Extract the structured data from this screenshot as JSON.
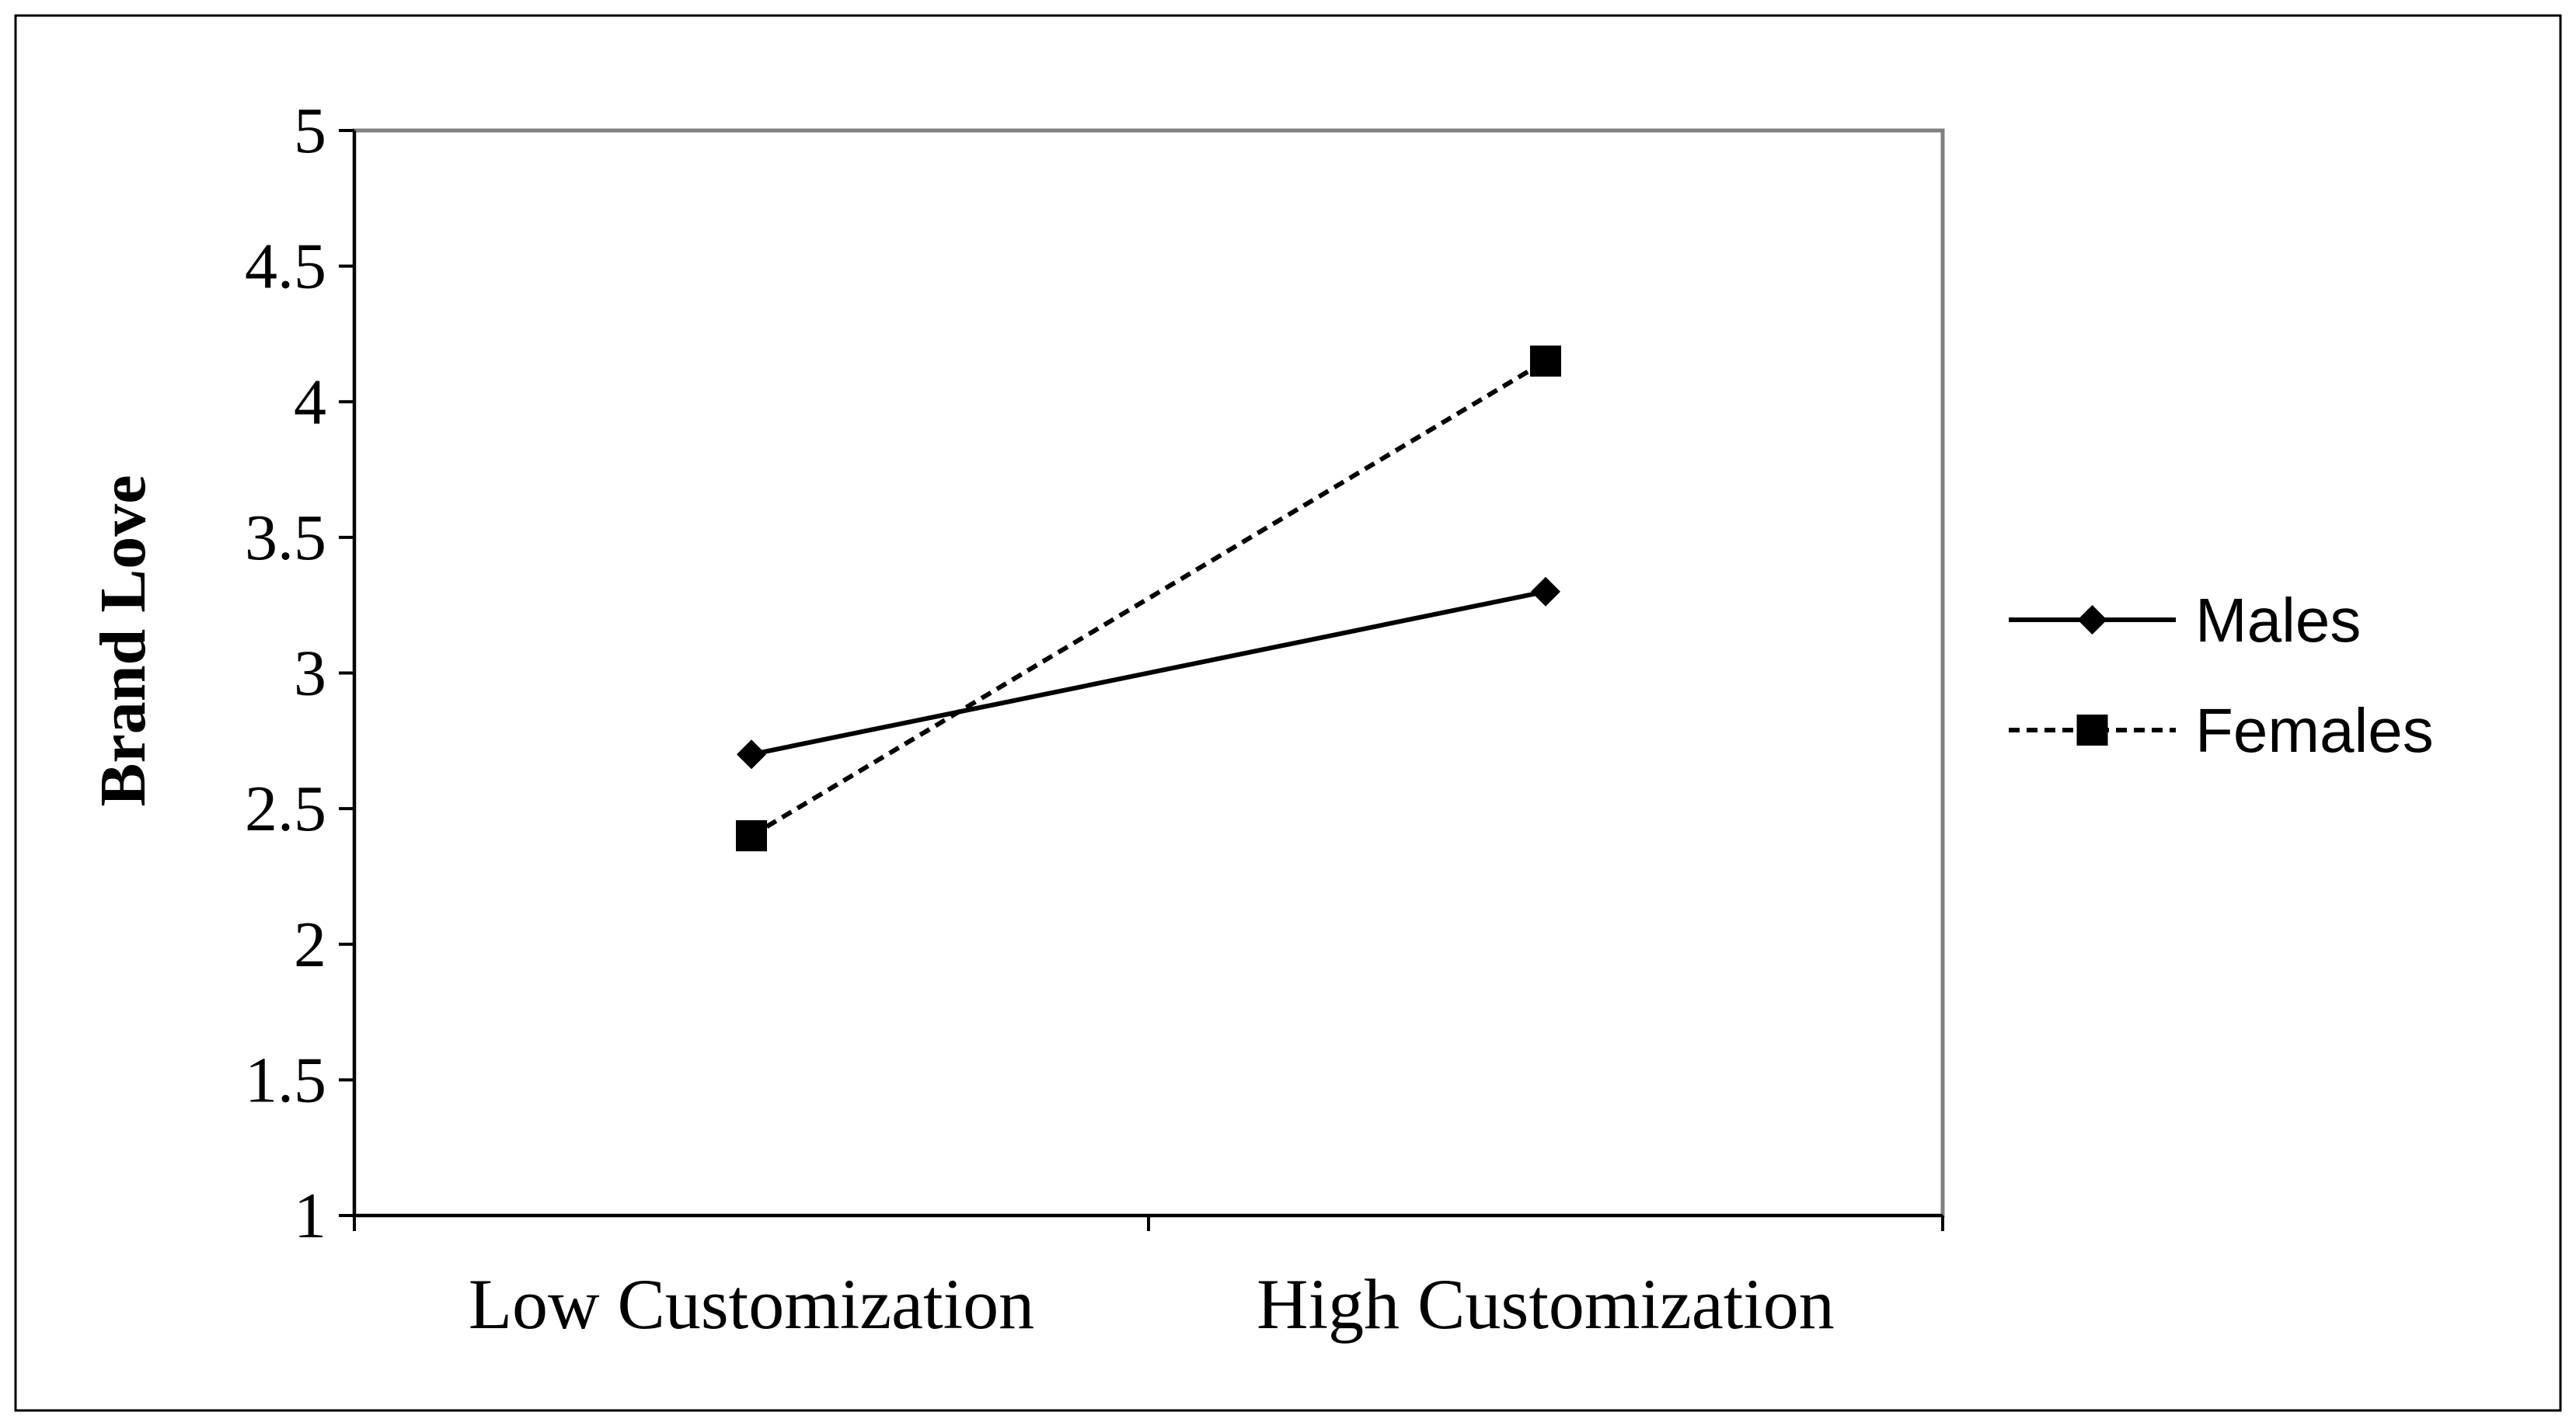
{
  "chart_data": {
    "type": "line",
    "categories": [
      "Low Customization",
      "High Customization"
    ],
    "series": [
      {
        "name": "Males",
        "values": [
          2.7,
          3.3
        ],
        "marker": "diamond",
        "line_style": "solid",
        "color": "#000000"
      },
      {
        "name": "Females",
        "values": [
          2.4,
          4.15
        ],
        "marker": "square",
        "line_style": "dashed",
        "color": "#000000"
      }
    ],
    "ylabel": "Brand Love",
    "xlabel": "",
    "ylim": [
      1,
      5
    ],
    "yticks": [
      "1",
      "1.5",
      "2",
      "2.5",
      "3",
      "3.5",
      "4",
      "4.5",
      "5"
    ],
    "grid": false,
    "legend_position": "right"
  }
}
